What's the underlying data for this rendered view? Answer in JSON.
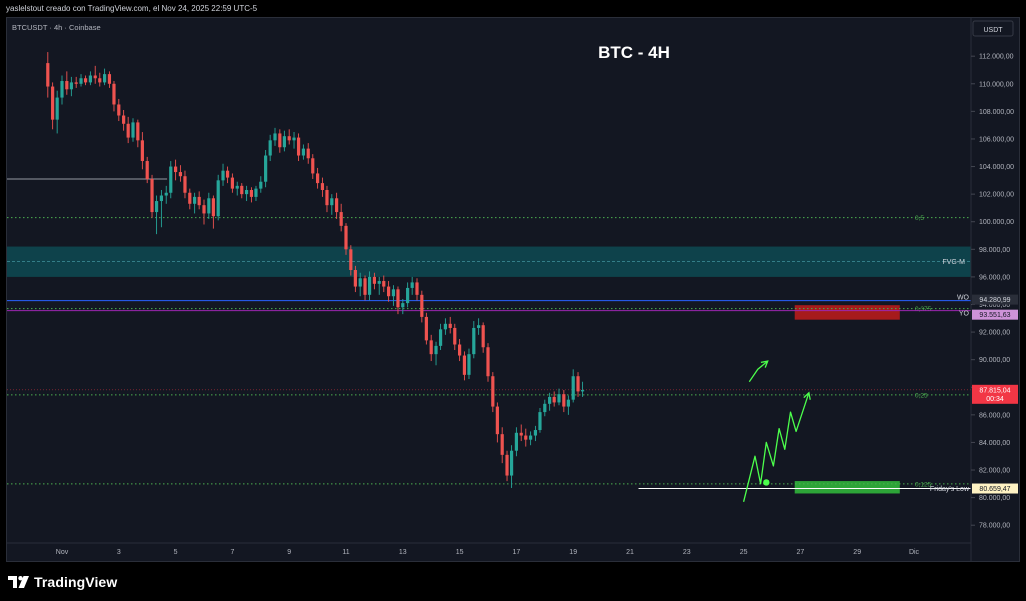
{
  "header": {
    "attribution": "yaslelstout creado con TradingView.com, el Nov 24, 2025 22:59 UTC-5"
  },
  "chart_data": {
    "type": "candlestick",
    "symbol_label": "BTCUSDT · 4h · Coinbase",
    "title": "BTC - 4H",
    "currency": "USDT",
    "ylim": [
      77000,
      113500
    ],
    "y_ticks": [
      {
        "value": 112000,
        "label": "112.000,00"
      },
      {
        "value": 110000,
        "label": "110.000,00"
      },
      {
        "value": 108000,
        "label": "108.000,00"
      },
      {
        "value": 106000,
        "label": "106.000,00"
      },
      {
        "value": 104000,
        "label": "104.000,00"
      },
      {
        "value": 102000,
        "label": "102.000,00"
      },
      {
        "value": 100000,
        "label": "100.000,00"
      },
      {
        "value": 98000,
        "label": "98.000,00"
      },
      {
        "value": 96000,
        "label": "96.000,00"
      },
      {
        "value": 94000,
        "label": "94.000,00"
      },
      {
        "value": 92000,
        "label": "92.000,00"
      },
      {
        "value": 90000,
        "label": "90.000,00"
      },
      {
        "value": 88000,
        "label": "88.000,00"
      },
      {
        "value": 86000,
        "label": "86.000,00"
      },
      {
        "value": 84000,
        "label": "84.000,00"
      },
      {
        "value": 82000,
        "label": "82.000,00"
      },
      {
        "value": 80000,
        "label": "80.000,00"
      },
      {
        "value": 78000,
        "label": "78.000,00"
      }
    ],
    "x_ticks": [
      {
        "day": 1,
        "label": "Nov"
      },
      {
        "day": 3,
        "label": "3"
      },
      {
        "day": 5,
        "label": "5"
      },
      {
        "day": 7,
        "label": "7"
      },
      {
        "day": 9,
        "label": "9"
      },
      {
        "day": 11,
        "label": "11"
      },
      {
        "day": 13,
        "label": "13"
      },
      {
        "day": 15,
        "label": "15"
      },
      {
        "day": 17,
        "label": "17"
      },
      {
        "day": 19,
        "label": "19"
      },
      {
        "day": 21,
        "label": "21"
      },
      {
        "day": 23,
        "label": "23"
      },
      {
        "day": 25,
        "label": "25"
      },
      {
        "day": 27,
        "label": "27"
      },
      {
        "day": 29,
        "label": "29"
      },
      {
        "day": 31,
        "label": "Dic"
      }
    ],
    "fib_levels": [
      {
        "value": 100300,
        "label": "0,5"
      },
      {
        "value": 93700,
        "label": "0,375"
      },
      {
        "value": 87450,
        "label": "0,25"
      },
      {
        "value": 81000,
        "label": "0,125"
      }
    ],
    "fvg_zone": {
      "low": 96000,
      "high": 98200,
      "label": "FVG-M"
    },
    "levels": [
      {
        "value": 94280.99,
        "label": "WO",
        "price_label": "94.280,99",
        "color": "#2962ff",
        "bg": "#2a2e39",
        "fg": "#d1d4dc"
      },
      {
        "value": 93551.63,
        "label": "YO",
        "price_label": "93.551,63",
        "color": "#9c27b0",
        "bg": "#ce93d8",
        "fg": "#131722"
      },
      {
        "value": 80659.47,
        "label": "Friday's Low",
        "price_label": "80.659,47",
        "color": "#ffffff",
        "bg": "#fff3c4",
        "fg": "#131722"
      }
    ],
    "current_price": {
      "value": 87815.04,
      "label": "87.815,04",
      "countdown": "00:34",
      "color": "#f23645"
    },
    "resistance_box": {
      "low": 92900,
      "high": 93950,
      "day_start": 26.8,
      "day_end": 30.5
    },
    "support_box": {
      "low": 80300,
      "high": 81200,
      "day_start": 26.8,
      "day_end": 30.5
    },
    "prev_high_line": {
      "value": 103100,
      "day_start": 0.4,
      "day_end": 4.7
    },
    "projections": [
      [
        [
          25.2,
          88400
        ],
        [
          25.5,
          89300
        ],
        [
          25.85,
          89900
        ]
      ],
      [
        [
          25.0,
          79700
        ],
        [
          25.4,
          83000
        ],
        [
          25.6,
          81000
        ],
        [
          25.8,
          84000
        ],
        [
          26.05,
          82300
        ],
        [
          26.25,
          85000
        ],
        [
          26.45,
          83500
        ],
        [
          26.65,
          86200
        ],
        [
          26.85,
          84800
        ],
        [
          27.3,
          87600
        ]
      ]
    ],
    "projection_dot": {
      "day": 25.8,
      "value": 81100
    },
    "candles": [
      {
        "d": 0.5,
        "o": 111500,
        "h": 112300,
        "l": 109000,
        "c": 109800
      },
      {
        "d": 0.67,
        "o": 109800,
        "h": 110100,
        "l": 106700,
        "c": 107400
      },
      {
        "d": 0.83,
        "o": 107400,
        "h": 109500,
        "l": 106400,
        "c": 109000
      },
      {
        "d": 1.0,
        "o": 109000,
        "h": 110600,
        "l": 108500,
        "c": 110200
      },
      {
        "d": 1.17,
        "o": 110200,
        "h": 110900,
        "l": 109200,
        "c": 109600
      },
      {
        "d": 1.33,
        "o": 109600,
        "h": 110500,
        "l": 109100,
        "c": 110100
      },
      {
        "d": 1.5,
        "o": 110100,
        "h": 110500,
        "l": 109700,
        "c": 110000
      },
      {
        "d": 1.67,
        "o": 110000,
        "h": 110700,
        "l": 109800,
        "c": 110400
      },
      {
        "d": 1.83,
        "o": 110400,
        "h": 110600,
        "l": 109900,
        "c": 110100
      },
      {
        "d": 2.0,
        "o": 110100,
        "h": 110900,
        "l": 109900,
        "c": 110600
      },
      {
        "d": 2.17,
        "o": 110600,
        "h": 111300,
        "l": 110000,
        "c": 110400
      },
      {
        "d": 2.33,
        "o": 110400,
        "h": 110800,
        "l": 109800,
        "c": 110100
      },
      {
        "d": 2.5,
        "o": 110100,
        "h": 111100,
        "l": 109900,
        "c": 110700
      },
      {
        "d": 2.67,
        "o": 110700,
        "h": 110900,
        "l": 109700,
        "c": 110000
      },
      {
        "d": 2.83,
        "o": 110000,
        "h": 110200,
        "l": 108000,
        "c": 108500
      },
      {
        "d": 3.0,
        "o": 108500,
        "h": 108900,
        "l": 107300,
        "c": 107700
      },
      {
        "d": 3.17,
        "o": 107700,
        "h": 108100,
        "l": 106600,
        "c": 107100
      },
      {
        "d": 3.33,
        "o": 107100,
        "h": 107600,
        "l": 105700,
        "c": 106100
      },
      {
        "d": 3.5,
        "o": 106100,
        "h": 107500,
        "l": 105800,
        "c": 107200
      },
      {
        "d": 3.67,
        "o": 107200,
        "h": 107400,
        "l": 105400,
        "c": 105900
      },
      {
        "d": 3.83,
        "o": 105900,
        "h": 106500,
        "l": 103800,
        "c": 104400
      },
      {
        "d": 4.0,
        "o": 104400,
        "h": 104700,
        "l": 102800,
        "c": 103100
      },
      {
        "d": 4.17,
        "o": 103100,
        "h": 103400,
        "l": 100300,
        "c": 100700
      },
      {
        "d": 4.33,
        "o": 100700,
        "h": 101900,
        "l": 99100,
        "c": 101500
      },
      {
        "d": 4.5,
        "o": 101500,
        "h": 102300,
        "l": 99600,
        "c": 101900
      },
      {
        "d": 4.67,
        "o": 101900,
        "h": 102600,
        "l": 101300,
        "c": 102100
      },
      {
        "d": 4.83,
        "o": 102100,
        "h": 104400,
        "l": 101700,
        "c": 104000
      },
      {
        "d": 5.0,
        "o": 104000,
        "h": 104500,
        "l": 103000,
        "c": 103600
      },
      {
        "d": 5.17,
        "o": 103600,
        "h": 104100,
        "l": 102900,
        "c": 103300
      },
      {
        "d": 5.33,
        "o": 103300,
        "h": 103700,
        "l": 101700,
        "c": 102100
      },
      {
        "d": 5.5,
        "o": 102100,
        "h": 102400,
        "l": 100900,
        "c": 101300
      },
      {
        "d": 5.67,
        "o": 101300,
        "h": 102100,
        "l": 100600,
        "c": 101800
      },
      {
        "d": 5.83,
        "o": 101800,
        "h": 102200,
        "l": 100900,
        "c": 101200
      },
      {
        "d": 6.0,
        "o": 101200,
        "h": 101600,
        "l": 99800,
        "c": 100600
      },
      {
        "d": 6.17,
        "o": 100600,
        "h": 102100,
        "l": 100200,
        "c": 101700
      },
      {
        "d": 6.33,
        "o": 101700,
        "h": 101900,
        "l": 99500,
        "c": 100400
      },
      {
        "d": 6.5,
        "o": 100400,
        "h": 103400,
        "l": 100100,
        "c": 103000
      },
      {
        "d": 6.67,
        "o": 103000,
        "h": 104200,
        "l": 102600,
        "c": 103700
      },
      {
        "d": 6.83,
        "o": 103700,
        "h": 104000,
        "l": 102800,
        "c": 103200
      },
      {
        "d": 7.0,
        "o": 103200,
        "h": 103500,
        "l": 102100,
        "c": 102400
      },
      {
        "d": 7.17,
        "o": 102400,
        "h": 102900,
        "l": 101900,
        "c": 102600
      },
      {
        "d": 7.33,
        "o": 102600,
        "h": 102800,
        "l": 101700,
        "c": 102000
      },
      {
        "d": 7.5,
        "o": 102000,
        "h": 102600,
        "l": 101500,
        "c": 102300
      },
      {
        "d": 7.67,
        "o": 102300,
        "h": 102500,
        "l": 101400,
        "c": 101800
      },
      {
        "d": 7.83,
        "o": 101800,
        "h": 102600,
        "l": 101500,
        "c": 102400
      },
      {
        "d": 8.0,
        "o": 102400,
        "h": 103300,
        "l": 102100,
        "c": 102900
      },
      {
        "d": 8.17,
        "o": 102900,
        "h": 105200,
        "l": 102500,
        "c": 104800
      },
      {
        "d": 8.33,
        "o": 104800,
        "h": 106300,
        "l": 104400,
        "c": 105900
      },
      {
        "d": 8.5,
        "o": 105900,
        "h": 106800,
        "l": 105500,
        "c": 106400
      },
      {
        "d": 8.67,
        "o": 106400,
        "h": 106700,
        "l": 105000,
        "c": 105400
      },
      {
        "d": 8.83,
        "o": 105400,
        "h": 106600,
        "l": 105100,
        "c": 106200
      },
      {
        "d": 9.0,
        "o": 106200,
        "h": 106700,
        "l": 105600,
        "c": 105900
      },
      {
        "d": 9.17,
        "o": 105900,
        "h": 106500,
        "l": 105300,
        "c": 106100
      },
      {
        "d": 9.33,
        "o": 106100,
        "h": 106400,
        "l": 104400,
        "c": 104800
      },
      {
        "d": 9.5,
        "o": 104800,
        "h": 105600,
        "l": 104500,
        "c": 105300
      },
      {
        "d": 9.67,
        "o": 105300,
        "h": 105700,
        "l": 104200,
        "c": 104600
      },
      {
        "d": 9.83,
        "o": 104600,
        "h": 104900,
        "l": 103100,
        "c": 103500
      },
      {
        "d": 10.0,
        "o": 103500,
        "h": 103900,
        "l": 102400,
        "c": 102800
      },
      {
        "d": 10.17,
        "o": 102800,
        "h": 103200,
        "l": 101800,
        "c": 102300
      },
      {
        "d": 10.33,
        "o": 102300,
        "h": 102600,
        "l": 100700,
        "c": 101200
      },
      {
        "d": 10.5,
        "o": 101200,
        "h": 102000,
        "l": 100500,
        "c": 101700
      },
      {
        "d": 10.67,
        "o": 101700,
        "h": 102100,
        "l": 100200,
        "c": 100700
      },
      {
        "d": 10.83,
        "o": 100700,
        "h": 101300,
        "l": 99300,
        "c": 99700
      },
      {
        "d": 11.0,
        "o": 99700,
        "h": 99900,
        "l": 97600,
        "c": 98000
      },
      {
        "d": 11.17,
        "o": 98000,
        "h": 98300,
        "l": 96100,
        "c": 96500
      },
      {
        "d": 11.33,
        "o": 96500,
        "h": 96800,
        "l": 94900,
        "c": 95300
      },
      {
        "d": 11.5,
        "o": 95300,
        "h": 96300,
        "l": 94600,
        "c": 95900
      },
      {
        "d": 11.67,
        "o": 95900,
        "h": 96100,
        "l": 94300,
        "c": 94700
      },
      {
        "d": 11.83,
        "o": 94700,
        "h": 96400,
        "l": 94300,
        "c": 96000
      },
      {
        "d": 12.0,
        "o": 96000,
        "h": 96300,
        "l": 95100,
        "c": 95500
      },
      {
        "d": 12.17,
        "o": 95500,
        "h": 96000,
        "l": 94700,
        "c": 95700
      },
      {
        "d": 12.33,
        "o": 95700,
        "h": 96100,
        "l": 94900,
        "c": 95300
      },
      {
        "d": 12.5,
        "o": 95300,
        "h": 95700,
        "l": 94200,
        "c": 94600
      },
      {
        "d": 12.67,
        "o": 94600,
        "h": 95400,
        "l": 93900,
        "c": 95100
      },
      {
        "d": 12.83,
        "o": 95100,
        "h": 95300,
        "l": 93300,
        "c": 93800
      },
      {
        "d": 13.0,
        "o": 93800,
        "h": 94400,
        "l": 93300,
        "c": 94100
      },
      {
        "d": 13.17,
        "o": 94100,
        "h": 95600,
        "l": 93800,
        "c": 95200
      },
      {
        "d": 13.33,
        "o": 95200,
        "h": 96000,
        "l": 94700,
        "c": 95600
      },
      {
        "d": 13.5,
        "o": 95600,
        "h": 95900,
        "l": 94300,
        "c": 94700
      },
      {
        "d": 13.67,
        "o": 94700,
        "h": 95000,
        "l": 92700,
        "c": 93100
      },
      {
        "d": 13.83,
        "o": 93100,
        "h": 93400,
        "l": 91100,
        "c": 91400
      },
      {
        "d": 14.0,
        "o": 91400,
        "h": 91800,
        "l": 89900,
        "c": 90400
      },
      {
        "d": 14.17,
        "o": 90400,
        "h": 91300,
        "l": 89600,
        "c": 91000
      },
      {
        "d": 14.33,
        "o": 91000,
        "h": 92600,
        "l": 90700,
        "c": 92200
      },
      {
        "d": 14.5,
        "o": 92200,
        "h": 93000,
        "l": 91800,
        "c": 92600
      },
      {
        "d": 14.67,
        "o": 92600,
        "h": 93100,
        "l": 91900,
        "c": 92300
      },
      {
        "d": 14.83,
        "o": 92300,
        "h": 92600,
        "l": 90700,
        "c": 91100
      },
      {
        "d": 15.0,
        "o": 91100,
        "h": 91500,
        "l": 89900,
        "c": 90300
      },
      {
        "d": 15.17,
        "o": 90300,
        "h": 90600,
        "l": 88500,
        "c": 88900
      },
      {
        "d": 15.33,
        "o": 88900,
        "h": 90800,
        "l": 88600,
        "c": 90400
      },
      {
        "d": 15.5,
        "o": 90400,
        "h": 92800,
        "l": 90100,
        "c": 92300
      },
      {
        "d": 15.67,
        "o": 92300,
        "h": 93000,
        "l": 91800,
        "c": 92500
      },
      {
        "d": 15.83,
        "o": 92500,
        "h": 92700,
        "l": 90500,
        "c": 90900
      },
      {
        "d": 16.0,
        "o": 90900,
        "h": 91200,
        "l": 88400,
        "c": 88800
      },
      {
        "d": 16.17,
        "o": 88800,
        "h": 89100,
        "l": 86200,
        "c": 86600
      },
      {
        "d": 16.33,
        "o": 86600,
        "h": 86900,
        "l": 84000,
        "c": 84600
      },
      {
        "d": 16.5,
        "o": 84600,
        "h": 85100,
        "l": 82500,
        "c": 83100
      },
      {
        "d": 16.67,
        "o": 83100,
        "h": 83400,
        "l": 81200,
        "c": 81600
      },
      {
        "d": 16.83,
        "o": 81600,
        "h": 83800,
        "l": 80700,
        "c": 83400
      },
      {
        "d": 17.0,
        "o": 83400,
        "h": 85100,
        "l": 83000,
        "c": 84700
      },
      {
        "d": 17.17,
        "o": 84700,
        "h": 85300,
        "l": 84100,
        "c": 84500
      },
      {
        "d": 17.33,
        "o": 84500,
        "h": 85000,
        "l": 83700,
        "c": 84200
      },
      {
        "d": 17.5,
        "o": 84200,
        "h": 84800,
        "l": 83800,
        "c": 84500
      },
      {
        "d": 17.67,
        "o": 84500,
        "h": 85200,
        "l": 84100,
        "c": 84900
      },
      {
        "d": 17.83,
        "o": 84900,
        "h": 86500,
        "l": 84700,
        "c": 86200
      },
      {
        "d": 18.0,
        "o": 86200,
        "h": 87100,
        "l": 85900,
        "c": 86800
      },
      {
        "d": 18.17,
        "o": 86800,
        "h": 87600,
        "l": 86300,
        "c": 87300
      },
      {
        "d": 18.33,
        "o": 87300,
        "h": 87700,
        "l": 86600,
        "c": 86900
      },
      {
        "d": 18.5,
        "o": 86900,
        "h": 87900,
        "l": 86700,
        "c": 87500
      },
      {
        "d": 18.67,
        "o": 87500,
        "h": 87800,
        "l": 86200,
        "c": 86600
      },
      {
        "d": 18.83,
        "o": 86600,
        "h": 87400,
        "l": 86000,
        "c": 87100
      },
      {
        "d": 19.0,
        "o": 87100,
        "h": 89300,
        "l": 86900,
        "c": 88800
      },
      {
        "d": 19.17,
        "o": 88800,
        "h": 89100,
        "l": 87300,
        "c": 87700
      },
      {
        "d": 19.33,
        "o": 87700,
        "h": 88400,
        "l": 87300,
        "c": 87800
      }
    ]
  },
  "footer": {
    "logo_text": "TradingView"
  }
}
